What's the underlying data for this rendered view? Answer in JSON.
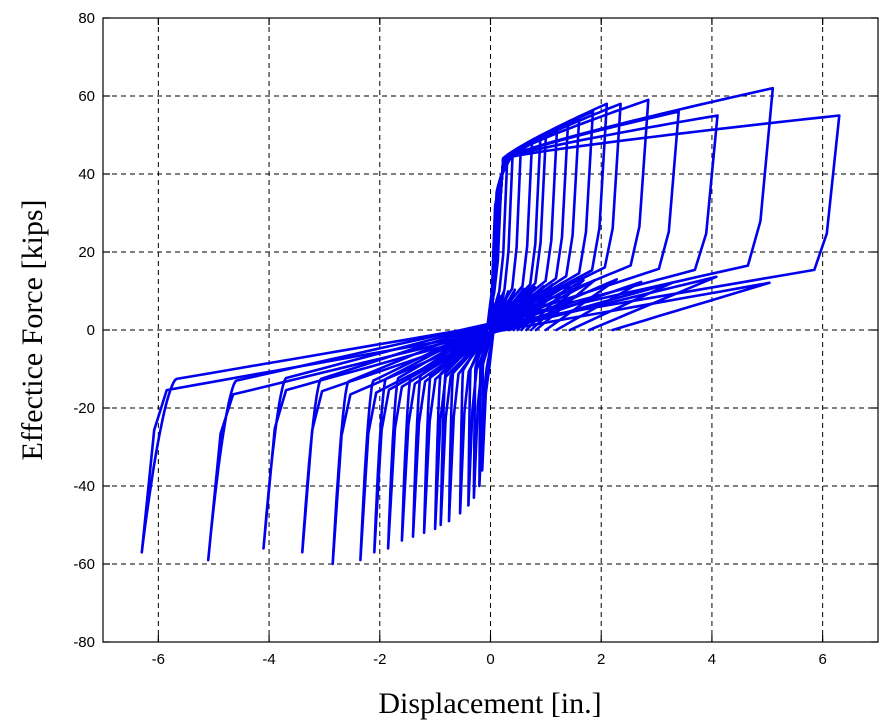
{
  "chart_data": {
    "type": "line",
    "title": "",
    "xlabel": "Displacement [in.]",
    "ylabel": "Effectice Force [kips]",
    "xlim": [
      -7,
      7
    ],
    "ylim": [
      -80,
      80
    ],
    "x_ticks": [
      -6,
      -4,
      -2,
      0,
      2,
      4,
      6
    ],
    "y_ticks": [
      -80,
      -60,
      -40,
      -20,
      0,
      20,
      40,
      60,
      80
    ],
    "grid": true,
    "legend": "none",
    "line_color": "#0000ee",
    "cycles": [
      {
        "d": 0.15,
        "f_pos": 36,
        "f_neg": -36
      },
      {
        "d": 0.2,
        "f_pos": 40,
        "f_neg": -40
      },
      {
        "d": 0.3,
        "f_pos": 43,
        "f_neg": -43
      },
      {
        "d": 0.4,
        "f_pos": 45,
        "f_neg": -45
      },
      {
        "d": 0.55,
        "f_pos": 47,
        "f_neg": -47
      },
      {
        "d": 0.75,
        "f_pos": 48,
        "f_neg": -49
      },
      {
        "d": 0.9,
        "f_pos": 49,
        "f_neg": -50
      },
      {
        "d": 1.0,
        "f_pos": 50,
        "f_neg": -51
      },
      {
        "d": 1.2,
        "f_pos": 51,
        "f_neg": -52
      },
      {
        "d": 1.4,
        "f_pos": 53,
        "f_neg": -53
      },
      {
        "d": 1.6,
        "f_pos": 54,
        "f_neg": -54
      },
      {
        "d": 1.85,
        "f_pos": 56,
        "f_neg": -56
      },
      {
        "d": 2.1,
        "f_pos": 58,
        "f_neg": -57
      },
      {
        "d": 2.35,
        "f_pos": 58,
        "f_neg": -59
      },
      {
        "d": 2.85,
        "f_pos": 59,
        "f_neg": -60
      },
      {
        "d": 3.4,
        "f_pos": 56,
        "f_neg": -57
      },
      {
        "d": 4.1,
        "f_pos": 55,
        "f_neg": -56
      },
      {
        "d": 5.1,
        "f_pos": 62,
        "f_neg": -59
      },
      {
        "d": 6.3,
        "f_pos": 55,
        "f_neg": -57
      }
    ]
  }
}
